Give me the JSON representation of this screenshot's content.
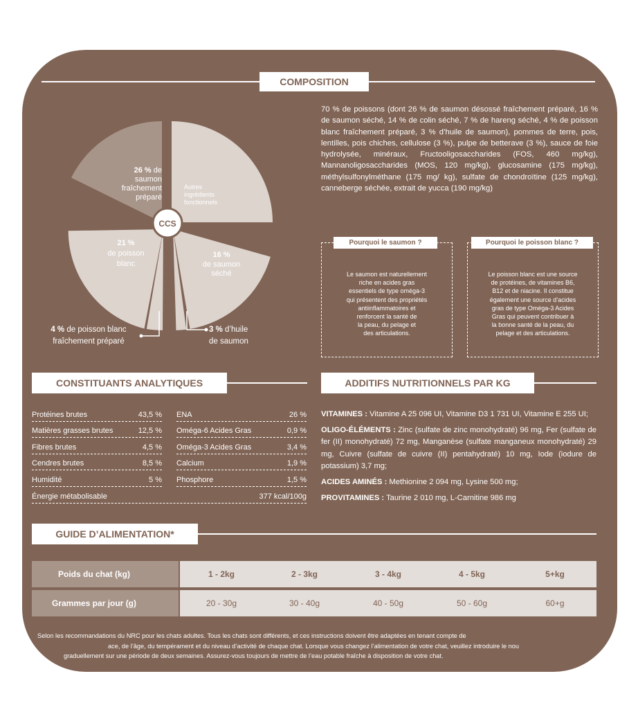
{
  "composition": {
    "title": "COMPOSITION",
    "text": "70 % de poissons (dont 26 % de saumon désossé fraîchement préparé, 16 % de saumon séché, 14 % de colin séché, 7 % de hareng séché, 4 % de poisson blanc fraîchement préparé, 3 % d’huile de saumon), pommes de terre, pois, lentilles, pois chiches, cellulose (3 %), pulpe de betterave (3 %), sauce de foie hydrolysée, minéraux, Fructooligosaccharides (FOS, 460 mg/kg), Mannanoligosaccharides (MOS, 120 mg/kg), glucosamine (175 mg/kg), méthylsulfonylméthane (175 mg/ kg), sulfate de chondroïtine (125 mg/kg), canneberge séchée, extrait de yucca (190 mg/kg)"
  },
  "pie": {
    "center": "CCS",
    "slices": [
      {
        "pct": "26 %",
        "text": [
          "de",
          "saumon",
          "fraîchement",
          "préparé"
        ]
      },
      {
        "text": [
          "Autres",
          "ingrédients",
          "fonctionnels"
        ]
      },
      {
        "pct": "16 %",
        "text": [
          "de saumon",
          "séché"
        ]
      },
      {
        "pct": "21 %",
        "text": [
          "de poisson",
          "blanc"
        ]
      }
    ],
    "callout_left": {
      "pct": "4 %",
      "line1": "de poisson blanc",
      "line2": "fraîchement préparé"
    },
    "callout_right": {
      "pct": "3 %",
      "line1": "d’huile",
      "line2": "de saumon"
    }
  },
  "box_saumon": {
    "title": "Pourquoi le saumon ?",
    "lines": [
      "Le saumon est naturellement",
      "riche en acides gras",
      "essentiels de type oméga-3",
      "qui présentent des propriétés",
      "antiinflammatoires et",
      "renforcent la santé de",
      "la peau, du pelage et",
      "des articulations."
    ]
  },
  "box_poisson": {
    "title": "Pourquoi le poisson blanc ?",
    "lines": [
      "Le poisson blanc est une source",
      "de protéines, de vitamines B6,",
      "B12 et de niacine. Il constitue",
      "également une source d’acides",
      "gras de type Oméga-3 Acides",
      "Gras qui peuvent contribuer à",
      "la bonne santé de la peau, du",
      "pelage et des articulations."
    ]
  },
  "analytiques": {
    "title": "CONSTITUANTS ANALYTIQUES",
    "left": [
      {
        "name": "Protéines brutes",
        "value": "43,5 %"
      },
      {
        "name": "Matières grasses brutes",
        "value": "12,5 %"
      },
      {
        "name": "Fibres brutes",
        "value": "4,5 %"
      },
      {
        "name": "Cendres brutes",
        "value": "8,5 %"
      },
      {
        "name": "Humidité",
        "value": "5 %"
      }
    ],
    "right": [
      {
        "name": "ENA",
        "value": "26 %"
      },
      {
        "name": "Oméga-6 Acides Gras",
        "value": "0,9 %"
      },
      {
        "name": "Oméga-3 Acides Gras",
        "value": "3,4 %"
      },
      {
        "name": "Calcium",
        "value": "1,9 %"
      },
      {
        "name": "Phosphore",
        "value": "1,5 %"
      }
    ],
    "energy": {
      "name": "Énergie métabolisable",
      "value": "377 kcal/100g"
    }
  },
  "additifs": {
    "title": "ADDITIFS NUTRITIONNELS PAR KG",
    "vitamines_label": "VITAMINES :",
    "vitamines": " Vitamine A 25 096 UI, Vitamine D3 1 731 UI, Vitamine E 255 UI;",
    "oligo_label": "OLIGO-ÉLÉMENTS :",
    "oligo": " Zinc (sulfate de zinc monohydraté) 96 mg, Fer (sulfate de fer (II) monohydraté) 72 mg, Manganèse (sulfate manganeux monohydraté) 29 mg, Cuivre (sulfate de cuivre (II) pentahydraté) 10 mg, Iode (iodure de potassium) 3,7 mg;",
    "acides_label": "ACIDES AMINÉS :",
    "acides": " Methionine 2 094 mg, Lysine 500 mg;",
    "provit_label": "PROVITAMINES :",
    "provit": " Taurine 2 010 mg, L-Carnitine 986 mg"
  },
  "guide": {
    "title": "GUIDE D’ALIMENTATION*",
    "row1_label": "Poids du chat (kg)",
    "row2_label": "Grammes par jour (g)",
    "weights": [
      "1 - 2kg",
      "2 - 3kg",
      "3 - 4kg",
      "4 - 5kg",
      "5+kg"
    ],
    "grams": [
      "20 - 30g",
      "30 - 40g",
      "40 - 50g",
      "50 - 60g",
      "60+g"
    ]
  },
  "footnote": [
    "Selon les recommandations du NRC pour les chats adultes. Tous les chats sont différents, et ces instructions doivent être adaptées en tenant compte de",
    "ace, de l’âge, du tempérament et du niveau d’activité de chaque chat. Lorsque vous changez l’alimentation de votre chat, veuillez introduire le nou",
    "graduellement sur une période de deux semaines. Assurez-vous toujours de mettre de l’eau potable fraîche à disposition de votre chat."
  ],
  "colors": {
    "background": "#806455",
    "slice_dark": "#a8958a",
    "slice_light": "#ddd4ce",
    "table_label": "#a8958a",
    "table_value": "#e4dedb"
  }
}
